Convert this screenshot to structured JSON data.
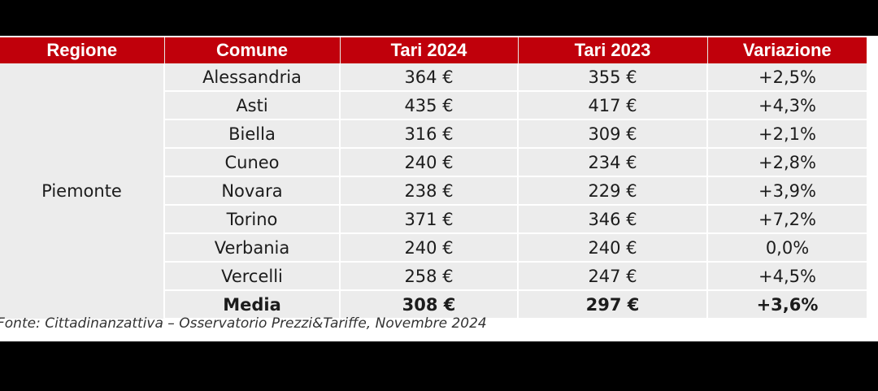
{
  "headers": {
    "region": "Regione",
    "comune": "Comune",
    "tari_2024": "Tari 2024",
    "tari_2023": "Tari 2023",
    "variazione": "Variazione"
  },
  "region": "Piemonte",
  "rows": [
    {
      "comune": "Alessandria",
      "tari_2024": "364 €",
      "tari_2023": "355 €",
      "variazione": "+2,5%"
    },
    {
      "comune": "Asti",
      "tari_2024": "435 €",
      "tari_2023": "417 €",
      "variazione": "+4,3%"
    },
    {
      "comune": "Biella",
      "tari_2024": "316 €",
      "tari_2023": "309 €",
      "variazione": "+2,1%"
    },
    {
      "comune": "Cuneo",
      "tari_2024": "240 €",
      "tari_2023": "234 €",
      "variazione": "+2,8%"
    },
    {
      "comune": "Novara",
      "tari_2024": "238 €",
      "tari_2023": "229 €",
      "variazione": "+3,9%"
    },
    {
      "comune": "Torino",
      "tari_2024": "371 €",
      "tari_2023": "346 €",
      "variazione": "+7,2%"
    },
    {
      "comune": "Verbania",
      "tari_2024": "240 €",
      "tari_2023": "240 €",
      "variazione": "0,0%"
    },
    {
      "comune": "Vercelli",
      "tari_2024": "258 €",
      "tari_2023": "247 €",
      "variazione": "+4,5%"
    }
  ],
  "average": {
    "comune": "Media",
    "tari_2024": "308 €",
    "tari_2023": "297 €",
    "variazione": "+3,6%"
  },
  "source": "Fonte: Cittadinanzattiva – Osservatorio Prezzi&Tariffe, Novembre 2024",
  "colors": {
    "header_bg": "#c0000b",
    "cell_bg": "#ececec",
    "frame": "#000000"
  }
}
